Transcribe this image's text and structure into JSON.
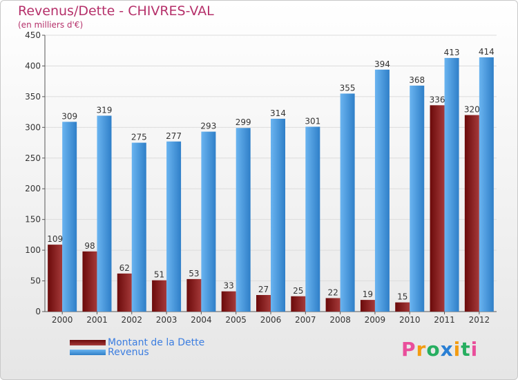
{
  "title": "Revenus/Dette - CHIVRES-VAL",
  "subtitle": "(en milliers d'€)",
  "colors": {
    "debt": "#6b0a0a",
    "debt_light": "#a53a3a",
    "revenue": "#2f7fc8",
    "revenue_light": "#6ab4f0",
    "axis_text": "#333333",
    "title": "#b5306a",
    "grid": "#dcdcdc"
  },
  "chart_data": {
    "type": "bar",
    "categories": [
      "2000",
      "2001",
      "2002",
      "2003",
      "2004",
      "2005",
      "2006",
      "2007",
      "2008",
      "2009",
      "2010",
      "2011",
      "2012"
    ],
    "series": [
      {
        "name": "Montant de la Dette",
        "values": [
          109,
          98,
          62,
          51,
          53,
          33,
          27,
          25,
          22,
          19,
          15,
          336,
          320
        ]
      },
      {
        "name": "Revenus",
        "values": [
          309,
          319,
          275,
          277,
          293,
          299,
          314,
          301,
          355,
          394,
          368,
          413,
          414
        ]
      }
    ],
    "ylim": [
      0,
      450
    ],
    "yticks": [
      0,
      50,
      100,
      150,
      200,
      250,
      300,
      350,
      400,
      450
    ],
    "grid": true,
    "legend_position": "bottom-left"
  },
  "legend": {
    "debt_label": "Montant de la Dette",
    "revenue_label": "Revenus"
  },
  "logo": {
    "letters": [
      "P",
      "r",
      "o",
      "x",
      "i",
      "t",
      "i"
    ],
    "colors": [
      "#e94e9b",
      "#f39c12",
      "#27ae60",
      "#2a7fd4",
      "#f39c12",
      "#27ae60",
      "#e94e9b"
    ]
  }
}
